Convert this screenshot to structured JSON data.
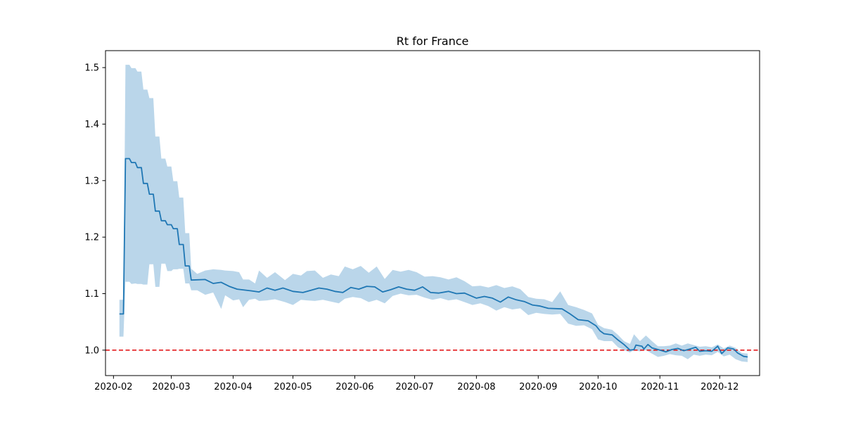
{
  "chart_data": {
    "type": "line",
    "title": "Rt for France",
    "xlabel": "",
    "ylabel": "",
    "x_type": "date",
    "xlim": [
      "2020-01-28",
      "2020-12-21"
    ],
    "ylim": [
      0.955,
      1.53
    ],
    "x_ticks": [
      "2020-02",
      "2020-03",
      "2020-04",
      "2020-05",
      "2020-06",
      "2020-07",
      "2020-08",
      "2020-09",
      "2020-10",
      "2020-11",
      "2020-12"
    ],
    "y_ticks": [
      "1.0",
      "1.1",
      "1.2",
      "1.3",
      "1.4",
      "1.5"
    ],
    "reference_line": {
      "y": 1.0,
      "style": "dashed",
      "color": "#e41a1c"
    },
    "grid": false,
    "colors": {
      "line": "#1f77b4",
      "band": "#bad6ea"
    },
    "series": [
      {
        "type": "line",
        "points": [
          [
            "2020-02-04",
            1.064
          ],
          [
            "2020-02-06",
            1.064
          ],
          [
            "2020-02-07",
            1.339
          ],
          [
            "2020-02-09",
            1.339
          ],
          [
            "2020-02-10",
            1.332
          ],
          [
            "2020-02-12",
            1.332
          ],
          [
            "2020-02-13",
            1.323
          ],
          [
            "2020-02-15",
            1.323
          ],
          [
            "2020-02-16",
            1.295
          ],
          [
            "2020-02-18",
            1.295
          ],
          [
            "2020-02-19",
            1.276
          ],
          [
            "2020-02-21",
            1.276
          ],
          [
            "2020-02-22",
            1.246
          ],
          [
            "2020-02-24",
            1.246
          ],
          [
            "2020-02-25",
            1.229
          ],
          [
            "2020-02-27",
            1.229
          ],
          [
            "2020-02-28",
            1.222
          ],
          [
            "2020-03-01",
            1.222
          ],
          [
            "2020-03-02",
            1.215
          ],
          [
            "2020-03-04",
            1.215
          ],
          [
            "2020-03-05",
            1.187
          ],
          [
            "2020-03-07",
            1.187
          ],
          [
            "2020-03-08",
            1.149
          ],
          [
            "2020-03-10",
            1.149
          ],
          [
            "2020-03-11",
            1.124
          ],
          [
            "2020-03-18",
            1.125
          ],
          [
            "2020-03-22",
            1.118
          ],
          [
            "2020-03-26",
            1.12
          ],
          [
            "2020-03-30",
            1.113
          ],
          [
            "2020-04-03",
            1.108
          ],
          [
            "2020-04-10",
            1.105
          ],
          [
            "2020-04-14",
            1.103
          ],
          [
            "2020-04-18",
            1.11
          ],
          [
            "2020-04-22",
            1.106
          ],
          [
            "2020-04-26",
            1.11
          ],
          [
            "2020-05-01",
            1.104
          ],
          [
            "2020-05-06",
            1.102
          ],
          [
            "2020-05-10",
            1.106
          ],
          [
            "2020-05-14",
            1.11
          ],
          [
            "2020-05-18",
            1.108
          ],
          [
            "2020-05-22",
            1.104
          ],
          [
            "2020-05-26",
            1.102
          ],
          [
            "2020-05-30",
            1.111
          ],
          [
            "2020-06-03",
            1.108
          ],
          [
            "2020-06-07",
            1.113
          ],
          [
            "2020-06-11",
            1.112
          ],
          [
            "2020-06-15",
            1.103
          ],
          [
            "2020-06-19",
            1.107
          ],
          [
            "2020-06-23",
            1.112
          ],
          [
            "2020-06-27",
            1.108
          ],
          [
            "2020-07-01",
            1.106
          ],
          [
            "2020-07-05",
            1.112
          ],
          [
            "2020-07-09",
            1.102
          ],
          [
            "2020-07-13",
            1.101
          ],
          [
            "2020-07-18",
            1.104
          ],
          [
            "2020-07-22",
            1.1
          ],
          [
            "2020-07-26",
            1.101
          ],
          [
            "2020-08-01",
            1.092
          ],
          [
            "2020-08-05",
            1.095
          ],
          [
            "2020-08-09",
            1.092
          ],
          [
            "2020-08-13",
            1.085
          ],
          [
            "2020-08-17",
            1.094
          ],
          [
            "2020-08-21",
            1.089
          ],
          [
            "2020-08-25",
            1.086
          ],
          [
            "2020-08-29",
            1.08
          ],
          [
            "2020-09-02",
            1.078
          ],
          [
            "2020-09-06",
            1.074
          ],
          [
            "2020-09-13",
            1.073
          ],
          [
            "2020-09-17",
            1.064
          ],
          [
            "2020-09-21",
            1.054
          ],
          [
            "2020-09-26",
            1.052
          ],
          [
            "2020-09-30",
            1.043
          ],
          [
            "2020-10-02",
            1.034
          ],
          [
            "2020-10-04",
            1.029
          ],
          [
            "2020-10-08",
            1.027
          ],
          [
            "2020-10-11",
            1.018
          ],
          [
            "2020-10-14",
            1.01
          ],
          [
            "2020-10-17",
            1.0
          ],
          [
            "2020-10-19",
            1.001
          ],
          [
            "2020-10-20",
            1.009
          ],
          [
            "2020-10-23",
            1.007
          ],
          [
            "2020-10-24",
            1.002
          ],
          [
            "2020-10-26",
            1.01
          ],
          [
            "2020-10-28",
            1.004
          ],
          [
            "2020-11-01",
            1.0
          ],
          [
            "2020-11-04",
            0.997
          ],
          [
            "2020-11-07",
            1.001
          ],
          [
            "2020-11-10",
            1.003
          ],
          [
            "2020-11-13",
            0.999
          ],
          [
            "2020-11-16",
            1.002
          ],
          [
            "2020-11-19",
            1.005
          ],
          [
            "2020-11-21",
            0.998
          ],
          [
            "2020-11-24",
            0.999
          ],
          [
            "2020-11-27",
            0.998
          ],
          [
            "2020-11-30",
            1.007
          ],
          [
            "2020-12-02",
            0.994
          ],
          [
            "2020-12-05",
            1.004
          ],
          [
            "2020-12-08",
            1.002
          ],
          [
            "2020-12-10",
            0.995
          ],
          [
            "2020-12-13",
            0.989
          ],
          [
            "2020-12-15",
            0.988
          ]
        ]
      },
      {
        "type": "band",
        "points": [
          [
            "2020-02-04",
            1.024,
            1.089
          ],
          [
            "2020-02-06",
            1.024,
            1.089
          ],
          [
            "2020-02-07",
            1.121,
            1.505
          ],
          [
            "2020-02-09",
            1.121,
            1.505
          ],
          [
            "2020-02-10",
            1.117,
            1.499
          ],
          [
            "2020-02-12",
            1.118,
            1.499
          ],
          [
            "2020-02-13",
            1.117,
            1.493
          ],
          [
            "2020-02-15",
            1.117,
            1.493
          ],
          [
            "2020-02-16",
            1.116,
            1.461
          ],
          [
            "2020-02-18",
            1.116,
            1.461
          ],
          [
            "2020-02-19",
            1.152,
            1.446
          ],
          [
            "2020-02-21",
            1.152,
            1.446
          ],
          [
            "2020-02-22",
            1.112,
            1.378
          ],
          [
            "2020-02-24",
            1.112,
            1.378
          ],
          [
            "2020-02-25",
            1.153,
            1.339
          ],
          [
            "2020-02-27",
            1.153,
            1.339
          ],
          [
            "2020-02-28",
            1.14,
            1.325
          ],
          [
            "2020-03-01",
            1.14,
            1.325
          ],
          [
            "2020-03-02",
            1.143,
            1.299
          ],
          [
            "2020-03-04",
            1.143,
            1.299
          ],
          [
            "2020-03-05",
            1.144,
            1.27
          ],
          [
            "2020-03-07",
            1.144,
            1.27
          ],
          [
            "2020-03-08",
            1.118,
            1.207
          ],
          [
            "2020-03-10",
            1.118,
            1.207
          ],
          [
            "2020-03-11",
            1.106,
            1.144
          ],
          [
            "2020-03-14",
            1.106,
            1.135
          ],
          [
            "2020-03-18",
            1.098,
            1.141
          ],
          [
            "2020-03-22",
            1.102,
            1.143
          ],
          [
            "2020-03-26",
            1.073,
            1.142
          ],
          [
            "2020-03-28",
            1.097,
            1.141
          ],
          [
            "2020-04-01",
            1.088,
            1.14
          ],
          [
            "2020-04-04",
            1.09,
            1.138
          ],
          [
            "2020-04-06",
            1.076,
            1.125
          ],
          [
            "2020-04-09",
            1.089,
            1.125
          ],
          [
            "2020-04-12",
            1.091,
            1.118
          ],
          [
            "2020-04-14",
            1.087,
            1.141
          ],
          [
            "2020-04-18",
            1.088,
            1.128
          ],
          [
            "2020-04-22",
            1.09,
            1.138
          ],
          [
            "2020-04-27",
            1.085,
            1.124
          ],
          [
            "2020-05-01",
            1.08,
            1.135
          ],
          [
            "2020-05-05",
            1.089,
            1.132
          ],
          [
            "2020-05-08",
            1.088,
            1.14
          ],
          [
            "2020-05-12",
            1.087,
            1.141
          ],
          [
            "2020-05-16",
            1.089,
            1.128
          ],
          [
            "2020-05-20",
            1.086,
            1.134
          ],
          [
            "2020-05-24",
            1.083,
            1.131
          ],
          [
            "2020-05-27",
            1.091,
            1.148
          ],
          [
            "2020-05-31",
            1.094,
            1.143
          ],
          [
            "2020-06-04",
            1.092,
            1.149
          ],
          [
            "2020-06-08",
            1.085,
            1.137
          ],
          [
            "2020-06-12",
            1.089,
            1.148
          ],
          [
            "2020-06-16",
            1.083,
            1.126
          ],
          [
            "2020-06-20",
            1.096,
            1.142
          ],
          [
            "2020-06-24",
            1.1,
            1.139
          ],
          [
            "2020-06-28",
            1.097,
            1.142
          ],
          [
            "2020-07-02",
            1.098,
            1.138
          ],
          [
            "2020-07-06",
            1.093,
            1.13
          ],
          [
            "2020-07-10",
            1.089,
            1.131
          ],
          [
            "2020-07-14",
            1.092,
            1.129
          ],
          [
            "2020-07-18",
            1.088,
            1.125
          ],
          [
            "2020-07-22",
            1.09,
            1.129
          ],
          [
            "2020-07-26",
            1.085,
            1.122
          ],
          [
            "2020-07-30",
            1.08,
            1.113
          ],
          [
            "2020-08-03",
            1.083,
            1.114
          ],
          [
            "2020-08-07",
            1.078,
            1.111
          ],
          [
            "2020-08-11",
            1.07,
            1.115
          ],
          [
            "2020-08-15",
            1.076,
            1.11
          ],
          [
            "2020-08-19",
            1.072,
            1.113
          ],
          [
            "2020-08-23",
            1.074,
            1.108
          ],
          [
            "2020-08-27",
            1.062,
            1.094
          ],
          [
            "2020-08-31",
            1.066,
            1.091
          ],
          [
            "2020-09-04",
            1.064,
            1.09
          ],
          [
            "2020-09-08",
            1.063,
            1.085
          ],
          [
            "2020-09-12",
            1.064,
            1.104
          ],
          [
            "2020-09-16",
            1.047,
            1.08
          ],
          [
            "2020-09-20",
            1.043,
            1.076
          ],
          [
            "2020-09-24",
            1.044,
            1.071
          ],
          [
            "2020-09-28",
            1.037,
            1.065
          ],
          [
            "2020-10-01",
            1.019,
            1.045
          ],
          [
            "2020-10-04",
            1.016,
            1.039
          ],
          [
            "2020-10-08",
            1.016,
            1.036
          ],
          [
            "2020-10-11",
            1.005,
            1.027
          ],
          [
            "2020-10-14",
            1.0,
            1.016
          ],
          [
            "2020-10-17",
            0.996,
            1.011
          ],
          [
            "2020-10-19",
            1.0,
            1.028
          ],
          [
            "2020-10-22",
            0.998,
            1.016
          ],
          [
            "2020-10-25",
            1.0,
            1.026
          ],
          [
            "2020-10-28",
            0.994,
            1.016
          ],
          [
            "2020-10-31",
            0.988,
            1.007
          ],
          [
            "2020-11-03",
            0.99,
            1.007
          ],
          [
            "2020-11-06",
            0.993,
            1.008
          ],
          [
            "2020-11-09",
            0.991,
            1.012
          ],
          [
            "2020-11-12",
            0.99,
            1.008
          ],
          [
            "2020-11-15",
            0.984,
            1.012
          ],
          [
            "2020-11-18",
            0.992,
            1.009
          ],
          [
            "2020-11-21",
            0.99,
            1.006
          ],
          [
            "2020-11-24",
            0.992,
            1.007
          ],
          [
            "2020-11-27",
            0.991,
            1.005
          ],
          [
            "2020-11-30",
            0.997,
            1.01
          ],
          [
            "2020-12-03",
            0.989,
            1.003
          ],
          [
            "2020-12-06",
            0.992,
            1.008
          ],
          [
            "2020-12-09",
            0.984,
            1.004
          ],
          [
            "2020-12-12",
            0.98,
            0.995
          ],
          [
            "2020-12-15",
            0.979,
            0.994
          ]
        ]
      }
    ]
  }
}
